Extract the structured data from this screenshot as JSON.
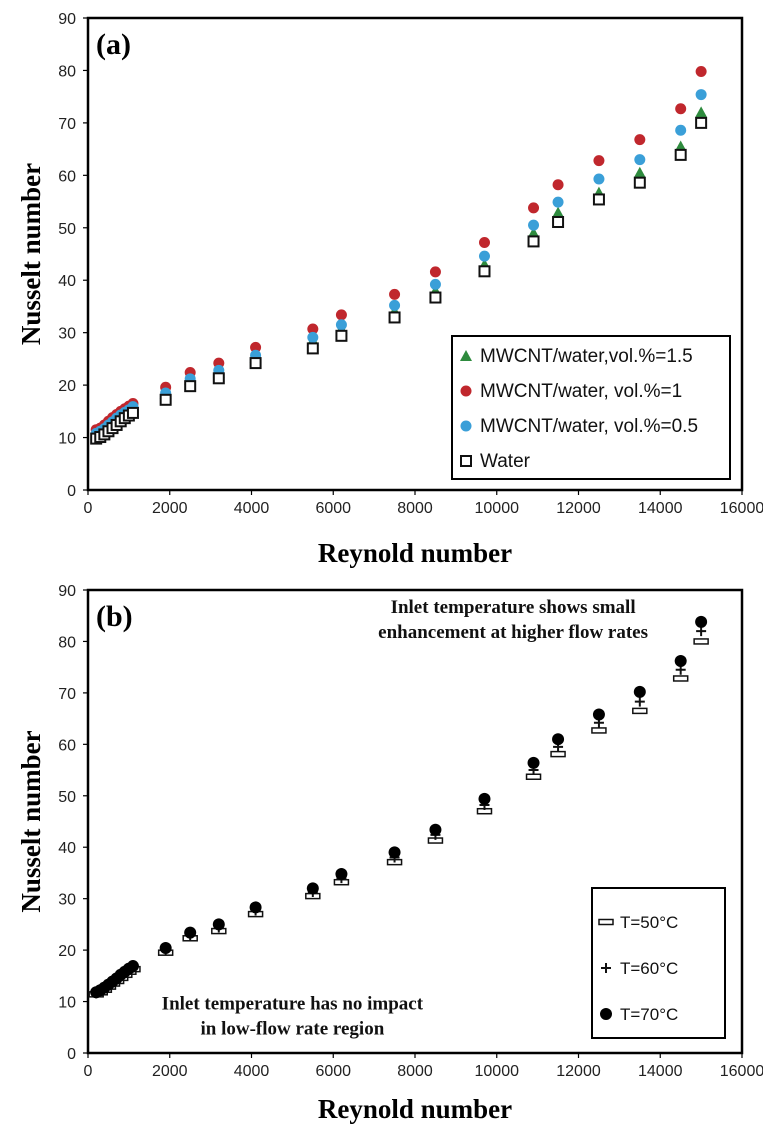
{
  "chart_data": [
    {
      "panel_label": "(a)",
      "type": "scatter",
      "xlabel": "Reynold number",
      "ylabel": "Nusselt number",
      "xlim": [
        0,
        16000
      ],
      "ylim": [
        0,
        90
      ],
      "xticks": [
        0,
        2000,
        4000,
        6000,
        8000,
        10000,
        12000,
        14000,
        16000
      ],
      "yticks": [
        0,
        10,
        20,
        30,
        40,
        50,
        60,
        70,
        80,
        90
      ],
      "legend_position": "bottom-right",
      "series": [
        {
          "name": "MWCNT/water,vol.%=1.5",
          "marker": "triangle",
          "color": "#2e8b3e",
          "points": [
            [
              200,
              10.5
            ],
            [
              300,
              10.8
            ],
            [
              400,
              11.3
            ],
            [
              500,
              11.9
            ],
            [
              600,
              12.5
            ],
            [
              700,
              13.2
            ],
            [
              800,
              13.9
            ],
            [
              900,
              14.5
            ],
            [
              1000,
              15.0
            ],
            [
              1100,
              15.6
            ],
            [
              1900,
              18.3
            ],
            [
              2500,
              21.0
            ],
            [
              3200,
              22.3
            ],
            [
              4100,
              25.2
            ],
            [
              5500,
              28.5
            ],
            [
              6200,
              30.7
            ],
            [
              7500,
              34.1
            ],
            [
              8500,
              38.0
            ],
            [
              9700,
              43.0
            ],
            [
              10900,
              49.0
            ],
            [
              11500,
              52.9
            ],
            [
              12500,
              56.7
            ],
            [
              13500,
              60.5
            ],
            [
              14500,
              65.5
            ],
            [
              15000,
              72.0
            ]
          ]
        },
        {
          "name": "MWCNT/water, vol.%=1",
          "marker": "circle",
          "color": "#c0272d",
          "points": [
            [
              200,
              11.5
            ],
            [
              300,
              11.8
            ],
            [
              400,
              12.4
            ],
            [
              500,
              13.1
            ],
            [
              600,
              13.8
            ],
            [
              700,
              14.4
            ],
            [
              800,
              15.0
            ],
            [
              900,
              15.5
            ],
            [
              1000,
              16.0
            ],
            [
              1100,
              16.5
            ],
            [
              1900,
              19.6
            ],
            [
              2500,
              22.4
            ],
            [
              3200,
              24.2
            ],
            [
              4100,
              27.2
            ],
            [
              5500,
              30.7
            ],
            [
              6200,
              33.4
            ],
            [
              7500,
              37.3
            ],
            [
              8500,
              41.6
            ],
            [
              9700,
              47.2
            ],
            [
              10900,
              53.8
            ],
            [
              11500,
              58.2
            ],
            [
              12500,
              62.8
            ],
            [
              13500,
              66.8
            ],
            [
              14500,
              72.7
            ],
            [
              15000,
              79.8
            ]
          ]
        },
        {
          "name": "MWCNT/water, vol.%=0.5",
          "marker": "circle",
          "color": "#3a9fd8",
          "points": [
            [
              200,
              10.8
            ],
            [
              300,
              11.2
            ],
            [
              400,
              11.7
            ],
            [
              500,
              12.4
            ],
            [
              600,
              13.0
            ],
            [
              700,
              13.7
            ],
            [
              800,
              14.3
            ],
            [
              900,
              14.8
            ],
            [
              1000,
              15.3
            ],
            [
              1100,
              15.9
            ],
            [
              1900,
              18.5
            ],
            [
              2500,
              21.2
            ],
            [
              3200,
              22.8
            ],
            [
              4100,
              25.7
            ],
            [
              5500,
              29.1
            ],
            [
              6200,
              31.5
            ],
            [
              7500,
              35.2
            ],
            [
              8500,
              39.2
            ],
            [
              9700,
              44.6
            ],
            [
              10900,
              50.5
            ],
            [
              11500,
              54.9
            ],
            [
              12500,
              59.3
            ],
            [
              13500,
              63.0
            ],
            [
              14500,
              68.6
            ],
            [
              15000,
              75.4
            ]
          ]
        },
        {
          "name": "Water",
          "marker": "open-square",
          "color": "#111111",
          "points": [
            [
              200,
              9.8
            ],
            [
              300,
              10.1
            ],
            [
              400,
              10.6
            ],
            [
              500,
              11.2
            ],
            [
              600,
              11.8
            ],
            [
              700,
              12.4
            ],
            [
              800,
              13.1
            ],
            [
              900,
              13.7
            ],
            [
              1000,
              14.2
            ],
            [
              1100,
              14.7
            ],
            [
              1900,
              17.2
            ],
            [
              2500,
              19.8
            ],
            [
              3200,
              21.3
            ],
            [
              4100,
              24.2
            ],
            [
              5500,
              27.0
            ],
            [
              6200,
              29.4
            ],
            [
              7500,
              32.9
            ],
            [
              8500,
              36.7
            ],
            [
              9700,
              41.7
            ],
            [
              10900,
              47.4
            ],
            [
              11500,
              51.1
            ],
            [
              12500,
              55.4
            ],
            [
              13500,
              58.6
            ],
            [
              14500,
              63.9
            ],
            [
              15000,
              70.0
            ]
          ]
        }
      ]
    },
    {
      "panel_label": "(b)",
      "type": "scatter",
      "xlabel": "Reynold number",
      "ylabel": "Nusselt number",
      "xlim": [
        0,
        16000
      ],
      "ylim": [
        0,
        90
      ],
      "xticks": [
        0,
        2000,
        4000,
        6000,
        8000,
        10000,
        12000,
        14000,
        16000
      ],
      "yticks": [
        0,
        10,
        20,
        30,
        40,
        50,
        60,
        70,
        80,
        90
      ],
      "legend_position": "bottom-right",
      "annotations": [
        {
          "lines": [
            "Inlet temperature shows small",
            "enhancement at higher flow rates"
          ],
          "at": [
            10400,
            85.5
          ]
        },
        {
          "lines": [
            "Inlet temperature has no impact",
            "in low-flow rate region"
          ],
          "at": [
            5000,
            8.5
          ]
        }
      ],
      "series": [
        {
          "name": "T=50°C",
          "marker": "dash",
          "color": "#111111",
          "points": [
            [
              200,
              11.4
            ],
            [
              300,
              11.8
            ],
            [
              400,
              12.3
            ],
            [
              500,
              12.9
            ],
            [
              600,
              13.5
            ],
            [
              700,
              14.0
            ],
            [
              800,
              14.6
            ],
            [
              900,
              15.2
            ],
            [
              1000,
              15.8
            ],
            [
              1100,
              16.3
            ],
            [
              1900,
              19.5
            ],
            [
              2500,
              22.3
            ],
            [
              3200,
              23.7
            ],
            [
              4100,
              27.0
            ],
            [
              5500,
              30.5
            ],
            [
              6200,
              33.2
            ],
            [
              7500,
              37.1
            ],
            [
              8500,
              41.3
            ],
            [
              9700,
              47.0
            ],
            [
              10900,
              53.7
            ],
            [
              11500,
              58.1
            ],
            [
              12500,
              62.7
            ],
            [
              13500,
              66.5
            ],
            [
              14500,
              72.8
            ],
            [
              15000,
              80.0
            ]
          ]
        },
        {
          "name": "T=60°C",
          "marker": "plus",
          "color": "#111111",
          "points": [
            [
              200,
              11.6
            ],
            [
              300,
              12.0
            ],
            [
              400,
              12.5
            ],
            [
              500,
              13.1
            ],
            [
              600,
              13.7
            ],
            [
              700,
              14.3
            ],
            [
              800,
              14.9
            ],
            [
              900,
              15.5
            ],
            [
              1000,
              16.1
            ],
            [
              1100,
              16.6
            ],
            [
              1900,
              20.0
            ],
            [
              2500,
              22.9
            ],
            [
              3200,
              24.4
            ],
            [
              4100,
              27.7
            ],
            [
              5500,
              31.3
            ],
            [
              6200,
              34.0
            ],
            [
              7500,
              38.0
            ],
            [
              8500,
              42.4
            ],
            [
              9700,
              48.2
            ],
            [
              10900,
              55.0
            ],
            [
              11500,
              59.5
            ],
            [
              12500,
              64.2
            ],
            [
              13500,
              68.3
            ],
            [
              14500,
              74.5
            ],
            [
              15000,
              82.0
            ]
          ]
        },
        {
          "name": "T=70°C",
          "marker": "filled-circle",
          "color": "#000000",
          "points": [
            [
              200,
              11.8
            ],
            [
              300,
              12.2
            ],
            [
              400,
              12.7
            ],
            [
              500,
              13.3
            ],
            [
              600,
              13.9
            ],
            [
              700,
              14.5
            ],
            [
              800,
              15.2
            ],
            [
              900,
              15.8
            ],
            [
              1000,
              16.4
            ],
            [
              1100,
              16.9
            ],
            [
              1900,
              20.4
            ],
            [
              2500,
              23.4
            ],
            [
              3200,
              25.0
            ],
            [
              4100,
              28.3
            ],
            [
              5500,
              32.0
            ],
            [
              6200,
              34.8
            ],
            [
              7500,
              39.0
            ],
            [
              8500,
              43.4
            ],
            [
              9700,
              49.4
            ],
            [
              10900,
              56.4
            ],
            [
              11500,
              61.0
            ],
            [
              12500,
              65.8
            ],
            [
              13500,
              70.2
            ],
            [
              14500,
              76.2
            ],
            [
              15000,
              83.8
            ]
          ]
        }
      ]
    }
  ]
}
